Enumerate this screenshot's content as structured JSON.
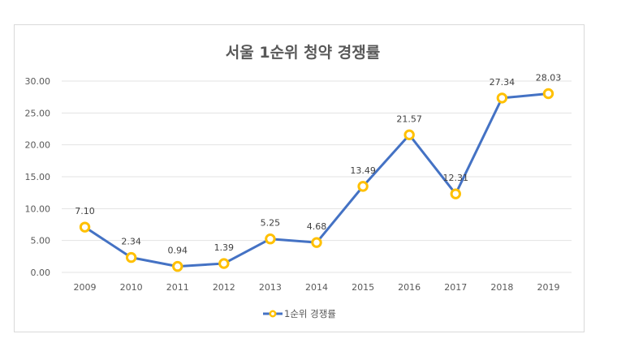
{
  "chart_data": {
    "type": "line",
    "title": "서울 1순위 청약 경쟁률",
    "xlabel": "",
    "ylabel": "",
    "categories": [
      "2009",
      "2010",
      "2011",
      "2012",
      "2013",
      "2014",
      "2015",
      "2016",
      "2017",
      "2018",
      "2019"
    ],
    "series": [
      {
        "name": "1순위 경쟁률",
        "values": [
          7.1,
          2.34,
          0.94,
          1.39,
          5.25,
          4.68,
          13.49,
          21.57,
          12.31,
          27.34,
          28.03
        ],
        "labels": [
          "7.10",
          "2.34",
          "0.94",
          "1.39",
          "5.25",
          "4.68",
          "13.49",
          "21.57",
          "12.31",
          "27.34",
          "28.03"
        ]
      }
    ],
    "yticks": [
      "0.00",
      "5.00",
      "10.00",
      "15.00",
      "20.00",
      "25.00",
      "30.00"
    ],
    "ylim": [
      0,
      30
    ],
    "grid": true,
    "legend_position": "bottom",
    "colors": {
      "line": "#4472c4",
      "marker_stroke": "#ffc000",
      "marker_fill": "#ffffff",
      "grid": "#e3e3e3"
    }
  }
}
